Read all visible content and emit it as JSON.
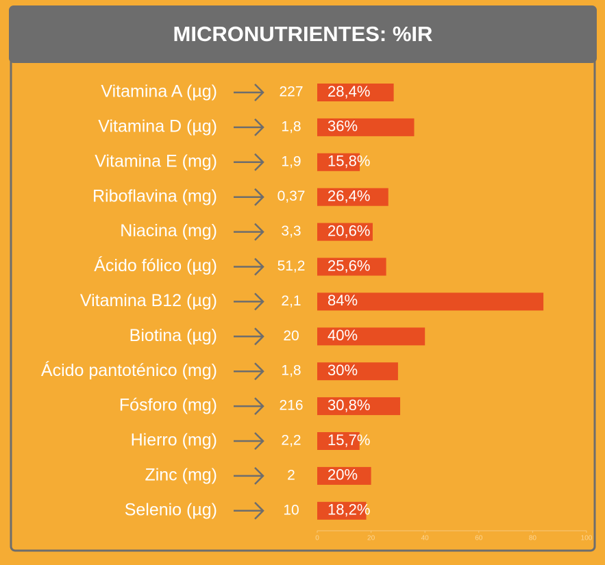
{
  "chart_data": {
    "type": "bar",
    "orientation": "horizontal",
    "title": "MICRONUTRIENTES: %IR",
    "categories": [
      "Vitamina A (µg)",
      "Vitamina D (µg)",
      "Vitamina E (mg)",
      "Riboflavina (mg)",
      "Niacina (mg)",
      "Ácido fólico (µg)",
      "Vitamina B12 (µg)",
      "Biotina (µg)",
      "Ácido pantoténico (mg)",
      "Fósforo (mg)",
      "Hierro (mg)",
      "Zinc (mg)",
      "Selenio (µg)"
    ],
    "amounts": [
      "227",
      "1,8",
      "1,9",
      "0,37",
      "3,3",
      "51,2",
      "2,1",
      "20",
      "1,8",
      "216",
      "2,2",
      "2",
      "10"
    ],
    "values": [
      28.4,
      36,
      15.8,
      26.4,
      20.6,
      25.6,
      84,
      40,
      30,
      30.8,
      15.7,
      20,
      18.2
    ],
    "value_labels": [
      "28,4%",
      "36%",
      "15,8%",
      "26,4%",
      "20,6%",
      "25,6%",
      "84%",
      "40%",
      "30%",
      "30,8%",
      "15,7%",
      "20%",
      "18,2%"
    ],
    "color": "#e84e21",
    "xlim": [
      0,
      100
    ],
    "xticks": [
      0,
      20,
      40,
      60,
      80,
      100
    ]
  }
}
